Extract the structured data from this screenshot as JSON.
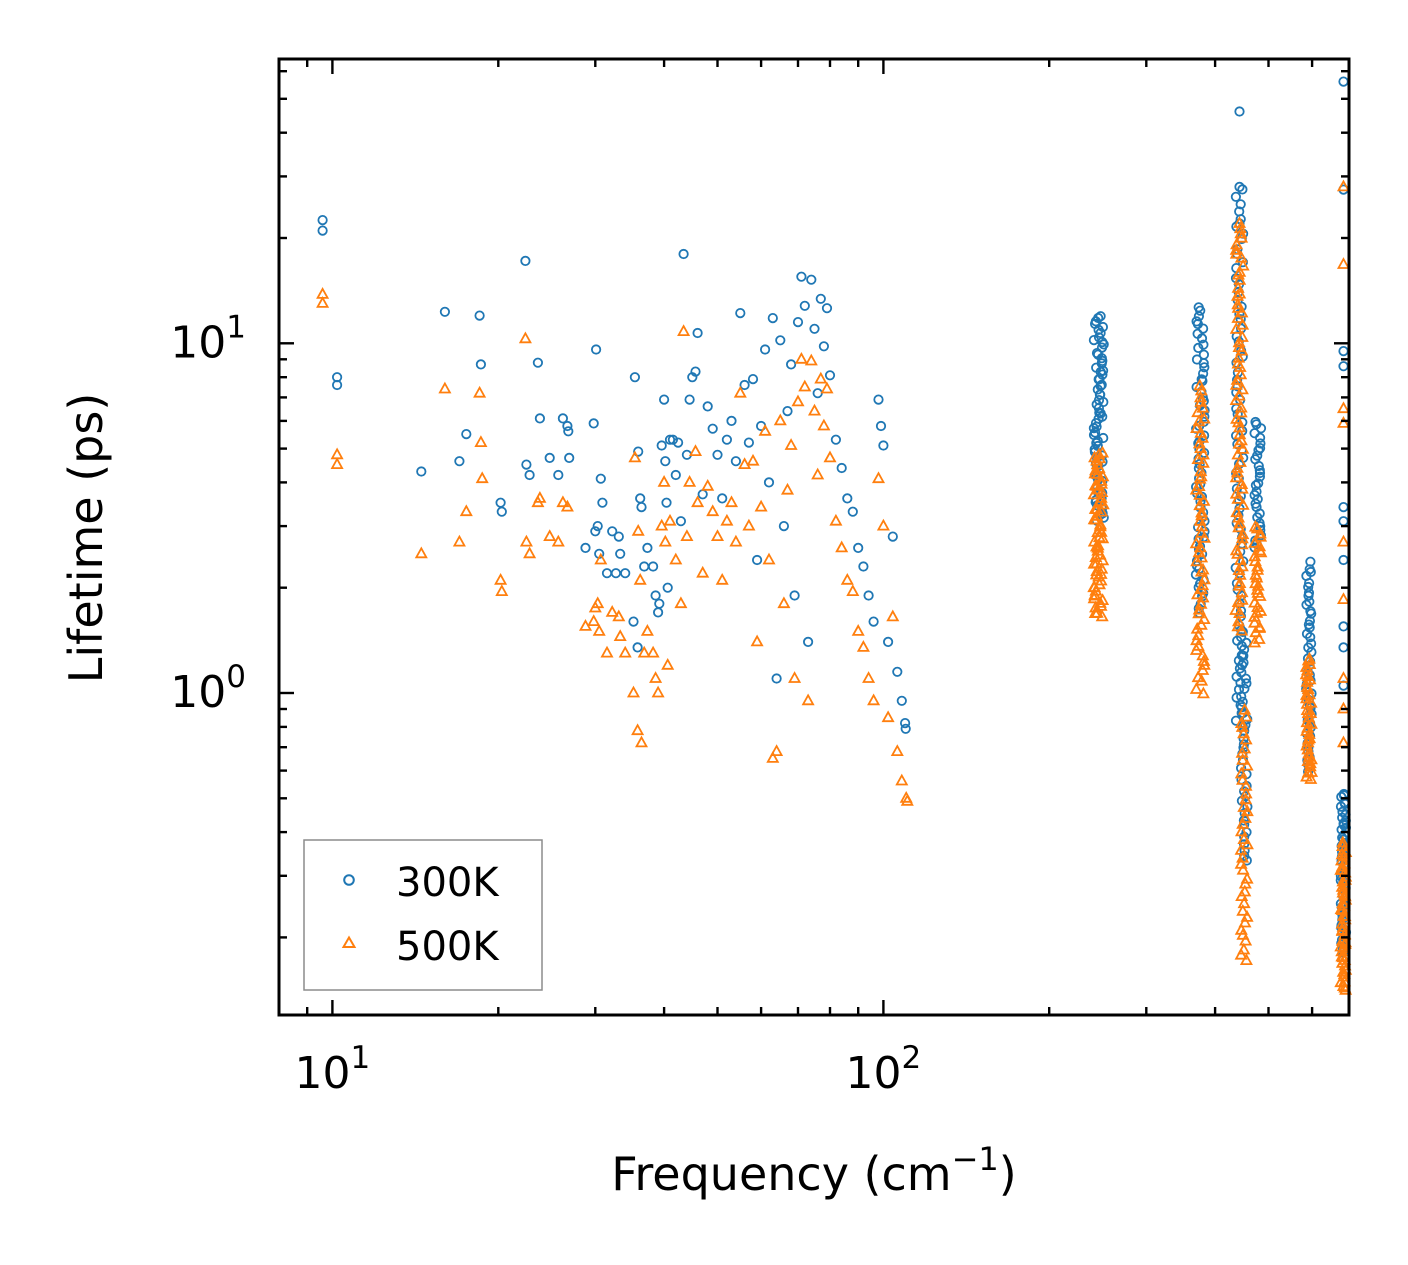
{
  "chart_data": {
    "type": "scatter",
    "title": "",
    "xlabel": "Frequency (cm",
    "xlabel_sup": "−1",
    "xlabel_close": ")",
    "ylabel": "Lifetime (ps)",
    "xscale": "log",
    "yscale": "log",
    "xlim": [
      8,
      700
    ],
    "ylim": [
      0.12,
      65
    ],
    "legend_position": "lower-left",
    "x_ticks": [
      {
        "value": 10,
        "base": "10",
        "exp": "1"
      },
      {
        "value": 100,
        "base": "10",
        "exp": "2"
      }
    ],
    "y_ticks": [
      {
        "value": 1,
        "base": "10",
        "exp": "0"
      },
      {
        "value": 10,
        "base": "10",
        "exp": "1"
      }
    ],
    "series": [
      {
        "name": "300K",
        "marker": "circle",
        "color": "#1f77b4",
        "points": [
          [
            9.6,
            22.5
          ],
          [
            9.6,
            21.0
          ],
          [
            10.2,
            8.0
          ],
          [
            10.2,
            7.6
          ],
          [
            14.5,
            4.3
          ],
          [
            16.0,
            12.3
          ],
          [
            17.0,
            4.6
          ],
          [
            17.5,
            5.5
          ],
          [
            18.5,
            12.0
          ],
          [
            18.6,
            8.7
          ],
          [
            20.2,
            3.5
          ],
          [
            20.3,
            3.3
          ],
          [
            22.4,
            17.2
          ],
          [
            22.5,
            4.5
          ],
          [
            22.8,
            4.2
          ],
          [
            23.6,
            8.8
          ],
          [
            23.8,
            6.1
          ],
          [
            24.8,
            4.7
          ],
          [
            25.7,
            4.2
          ],
          [
            26.2,
            6.1
          ],
          [
            26.7,
            5.8
          ],
          [
            26.8,
            5.6
          ],
          [
            26.9,
            4.7
          ],
          [
            28.8,
            2.6
          ],
          [
            29.8,
            5.9
          ],
          [
            30.0,
            2.9
          ],
          [
            30.1,
            9.6
          ],
          [
            30.3,
            3.0
          ],
          [
            30.5,
            2.5
          ],
          [
            30.7,
            4.1
          ],
          [
            30.9,
            3.5
          ],
          [
            31.5,
            2.2
          ],
          [
            32.2,
            2.9
          ],
          [
            32.7,
            2.2
          ],
          [
            33.1,
            2.8
          ],
          [
            33.3,
            2.5
          ],
          [
            34.0,
            2.2
          ],
          [
            35.2,
            1.6
          ],
          [
            35.4,
            8.0
          ],
          [
            35.8,
            1.35
          ],
          [
            35.9,
            4.9
          ],
          [
            36.2,
            3.6
          ],
          [
            36.4,
            3.4
          ],
          [
            36.8,
            2.3
          ],
          [
            37.3,
            2.6
          ],
          [
            38.2,
            2.3
          ],
          [
            38.6,
            1.9
          ],
          [
            39.0,
            1.7
          ],
          [
            39.2,
            1.8
          ],
          [
            39.6,
            5.1
          ],
          [
            40.0,
            6.9
          ],
          [
            40.2,
            4.6
          ],
          [
            40.4,
            3.5
          ],
          [
            40.6,
            2.0
          ],
          [
            41.0,
            5.3
          ],
          [
            41.5,
            5.3
          ],
          [
            42.0,
            4.2
          ],
          [
            42.4,
            5.2
          ],
          [
            42.9,
            3.1
          ],
          [
            43.4,
            18.0
          ],
          [
            44.0,
            4.8
          ],
          [
            44.5,
            6.9
          ],
          [
            45.0,
            8.0
          ],
          [
            45.6,
            8.3
          ],
          [
            46.0,
            10.7
          ],
          [
            47.0,
            3.7
          ],
          [
            48.0,
            6.6
          ],
          [
            49.0,
            5.7
          ],
          [
            50.0,
            4.8
          ],
          [
            51.0,
            3.6
          ],
          [
            52.0,
            5.3
          ],
          [
            53.0,
            6.0
          ],
          [
            54.0,
            4.6
          ],
          [
            55.0,
            12.2
          ],
          [
            56.0,
            7.6
          ],
          [
            57.0,
            5.2
          ],
          [
            58.0,
            7.9
          ],
          [
            59.0,
            2.4
          ],
          [
            60.0,
            5.8
          ],
          [
            61.0,
            9.6
          ],
          [
            62.0,
            4.0
          ],
          [
            63.0,
            11.8
          ],
          [
            64.0,
            1.1
          ],
          [
            65.0,
            10.2
          ],
          [
            66.0,
            3.0
          ],
          [
            67.0,
            6.4
          ],
          [
            68.0,
            8.7
          ],
          [
            69.0,
            1.9
          ],
          [
            70.0,
            11.5
          ],
          [
            71.0,
            15.5
          ],
          [
            72.0,
            12.8
          ],
          [
            73.0,
            1.4
          ],
          [
            74.0,
            15.2
          ],
          [
            75.0,
            11.0
          ],
          [
            76.0,
            7.2
          ],
          [
            77.0,
            13.4
          ],
          [
            78.0,
            9.8
          ],
          [
            79.0,
            12.6
          ],
          [
            80.0,
            8.1
          ],
          [
            82.0,
            5.3
          ],
          [
            84.0,
            4.4
          ],
          [
            86.0,
            3.6
          ],
          [
            88.0,
            3.3
          ],
          [
            90.0,
            2.6
          ],
          [
            92.0,
            2.3
          ],
          [
            94.0,
            1.9
          ],
          [
            96.0,
            1.6
          ],
          [
            98.0,
            6.9
          ],
          [
            99.0,
            5.8
          ],
          [
            100.0,
            5.1
          ],
          [
            102.0,
            1.4
          ],
          [
            104.0,
            2.8
          ],
          [
            106.0,
            1.15
          ],
          [
            108.0,
            0.95
          ],
          [
            109.5,
            0.82
          ],
          [
            109.8,
            0.79
          ]
        ],
        "bands": [
          {
            "x": 246,
            "jitter": 0.009,
            "ymin": 3.1,
            "ymax": 12.0,
            "n": 70
          },
          {
            "x": 376,
            "jitter": 0.008,
            "ymin": 1.7,
            "ymax": 12.8,
            "n": 65
          },
          {
            "x": 443,
            "jitter": 0.007,
            "ymin": 0.8,
            "ymax": 27.5,
            "n": 75
          },
          {
            "x": 452,
            "jitter": 0.006,
            "ymin": 0.33,
            "ymax": 1.5,
            "n": 40
          },
          {
            "x": 478,
            "jitter": 0.006,
            "ymin": 2.6,
            "ymax": 6.0,
            "n": 30
          },
          {
            "x": 592,
            "jitter": 0.005,
            "ymin": 0.6,
            "ymax": 2.35,
            "n": 45
          },
          {
            "x": 684,
            "jitter": 0.005,
            "ymin": 0.18,
            "ymax": 0.52,
            "n": 55
          }
        ],
        "extra_points": [
          [
            443,
            46.0
          ],
          [
            443,
            28.0
          ],
          [
            443,
            22.0
          ],
          [
            684,
            56.0
          ],
          [
            684,
            27.5
          ],
          [
            684,
            9.5
          ],
          [
            684,
            8.6
          ],
          [
            684,
            3.4
          ],
          [
            684,
            3.1
          ],
          [
            684,
            2.4
          ],
          [
            684,
            1.55
          ],
          [
            684,
            1.35
          ],
          [
            684,
            1.05
          ]
        ]
      },
      {
        "name": "500K",
        "marker": "triangle",
        "color": "#ff7f0e",
        "points": [
          [
            9.6,
            13.8
          ],
          [
            9.6,
            13.0
          ],
          [
            10.2,
            4.8
          ],
          [
            10.2,
            4.5
          ],
          [
            14.5,
            2.5
          ],
          [
            16.0,
            7.4
          ],
          [
            17.0,
            2.7
          ],
          [
            17.5,
            3.3
          ],
          [
            18.5,
            7.2
          ],
          [
            18.6,
            5.2
          ],
          [
            18.7,
            4.1
          ],
          [
            20.2,
            2.1
          ],
          [
            20.3,
            1.95
          ],
          [
            22.4,
            10.3
          ],
          [
            22.5,
            2.7
          ],
          [
            22.8,
            2.5
          ],
          [
            23.6,
            3.5
          ],
          [
            23.8,
            3.6
          ],
          [
            24.8,
            2.8
          ],
          [
            25.7,
            2.7
          ],
          [
            26.2,
            3.5
          ],
          [
            26.7,
            3.4
          ],
          [
            28.8,
            1.55
          ],
          [
            29.8,
            1.6
          ],
          [
            30.0,
            1.75
          ],
          [
            30.3,
            1.8
          ],
          [
            30.5,
            1.5
          ],
          [
            30.7,
            2.4
          ],
          [
            31.5,
            1.3
          ],
          [
            32.2,
            1.7
          ],
          [
            33.1,
            1.65
          ],
          [
            33.3,
            1.45
          ],
          [
            34.0,
            1.3
          ],
          [
            35.2,
            1.0
          ],
          [
            35.4,
            4.7
          ],
          [
            35.8,
            0.78
          ],
          [
            35.9,
            2.9
          ],
          [
            36.2,
            2.1
          ],
          [
            36.4,
            0.72
          ],
          [
            36.8,
            1.3
          ],
          [
            37.3,
            1.5
          ],
          [
            38.2,
            1.3
          ],
          [
            38.6,
            1.1
          ],
          [
            39.0,
            1.0
          ],
          [
            39.6,
            3.0
          ],
          [
            40.0,
            4.0
          ],
          [
            40.2,
            2.7
          ],
          [
            40.6,
            1.2
          ],
          [
            41.0,
            3.1
          ],
          [
            42.0,
            2.4
          ],
          [
            42.9,
            1.8
          ],
          [
            43.4,
            10.8
          ],
          [
            44.0,
            2.8
          ],
          [
            44.5,
            4.0
          ],
          [
            45.6,
            4.9
          ],
          [
            46.0,
            3.5
          ],
          [
            47.0,
            2.2
          ],
          [
            48.0,
            3.9
          ],
          [
            49.0,
            3.3
          ],
          [
            50.0,
            2.8
          ],
          [
            51.0,
            2.1
          ],
          [
            52.0,
            3.1
          ],
          [
            53.0,
            3.5
          ],
          [
            54.0,
            2.7
          ],
          [
            55.0,
            7.2
          ],
          [
            56.0,
            4.5
          ],
          [
            57.0,
            3.0
          ],
          [
            58.0,
            4.6
          ],
          [
            59.0,
            1.4
          ],
          [
            60.0,
            3.4
          ],
          [
            61.0,
            5.6
          ],
          [
            62.0,
            2.4
          ],
          [
            63.0,
            0.65
          ],
          [
            64.0,
            0.68
          ],
          [
            65.0,
            6.0
          ],
          [
            66.0,
            1.8
          ],
          [
            67.0,
            3.8
          ],
          [
            68.0,
            5.1
          ],
          [
            69.0,
            1.1
          ],
          [
            70.0,
            6.8
          ],
          [
            71.0,
            9.0
          ],
          [
            72.0,
            7.5
          ],
          [
            73.0,
            0.95
          ],
          [
            74.0,
            8.9
          ],
          [
            75.0,
            6.4
          ],
          [
            76.0,
            4.2
          ],
          [
            77.0,
            7.9
          ],
          [
            78.0,
            5.8
          ],
          [
            79.0,
            7.4
          ],
          [
            80.0,
            4.7
          ],
          [
            82.0,
            3.1
          ],
          [
            84.0,
            2.6
          ],
          [
            86.0,
            2.1
          ],
          [
            88.0,
            1.95
          ],
          [
            90.0,
            1.5
          ],
          [
            92.0,
            1.35
          ],
          [
            94.0,
            1.1
          ],
          [
            96.0,
            0.95
          ],
          [
            98.0,
            4.1
          ],
          [
            100.0,
            3.0
          ],
          [
            102.0,
            0.85
          ],
          [
            104.0,
            1.65
          ],
          [
            106.0,
            0.68
          ],
          [
            108.0,
            0.56
          ],
          [
            110.0,
            0.5
          ],
          [
            110.5,
            0.49
          ]
        ],
        "bands": [
          {
            "x": 246,
            "jitter": 0.009,
            "ymin": 1.65,
            "ymax": 4.9,
            "n": 65
          },
          {
            "x": 376,
            "jitter": 0.008,
            "ymin": 1.0,
            "ymax": 7.5,
            "n": 60
          },
          {
            "x": 443,
            "jitter": 0.007,
            "ymin": 1.5,
            "ymax": 21.5,
            "n": 75
          },
          {
            "x": 452,
            "jitter": 0.006,
            "ymin": 0.17,
            "ymax": 0.9,
            "n": 40
          },
          {
            "x": 478,
            "jitter": 0.006,
            "ymin": 1.4,
            "ymax": 3.0,
            "n": 30
          },
          {
            "x": 592,
            "jitter": 0.005,
            "ymin": 0.56,
            "ymax": 1.25,
            "n": 40
          },
          {
            "x": 684,
            "jitter": 0.005,
            "ymin": 0.14,
            "ymax": 0.37,
            "n": 55
          }
        ],
        "extra_points": [
          [
            443,
            22.0
          ],
          [
            684,
            28.0
          ],
          [
            684,
            16.8
          ],
          [
            684,
            6.5
          ],
          [
            684,
            5.9
          ],
          [
            684,
            2.7
          ],
          [
            684,
            1.85
          ],
          [
            684,
            1.1
          ],
          [
            684,
            0.9
          ],
          [
            684,
            0.72
          ]
        ]
      }
    ]
  }
}
